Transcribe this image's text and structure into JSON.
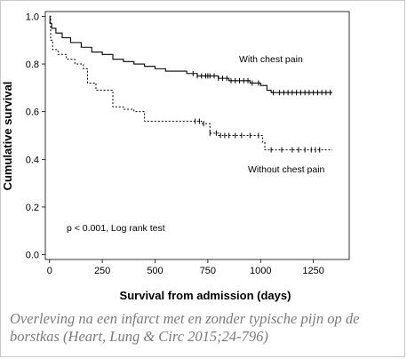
{
  "chart_data": {
    "type": "line",
    "title": "",
    "xlabel": "Survival from admission (days)",
    "ylabel": "Cumulative survival",
    "xlim": [
      -20,
      1420
    ],
    "ylim": [
      -0.02,
      1.02
    ],
    "xticks": [
      0,
      250,
      500,
      750,
      1000,
      1250
    ],
    "yticks": [
      0.0,
      0.2,
      0.4,
      0.6,
      0.8,
      1.0
    ],
    "xtick_labels": [
      "0",
      "250",
      "500",
      "750",
      "1000",
      "1250"
    ],
    "ytick_labels": [
      "0.0",
      "0.2",
      "0.4",
      "0.6",
      "0.8",
      "1.0"
    ],
    "grid": false,
    "legend": "none",
    "annotation": "p < 0.001, Log rank test",
    "series": [
      {
        "name": "With chest pain",
        "style": "solid",
        "color": "#000000",
        "points": [
          [
            0,
            1.0
          ],
          [
            2,
            0.97
          ],
          [
            10,
            0.95
          ],
          [
            30,
            0.93
          ],
          [
            60,
            0.91
          ],
          [
            100,
            0.89
          ],
          [
            150,
            0.87
          ],
          [
            200,
            0.85
          ],
          [
            250,
            0.84
          ],
          [
            300,
            0.82
          ],
          [
            350,
            0.81
          ],
          [
            400,
            0.8
          ],
          [
            450,
            0.79
          ],
          [
            500,
            0.78
          ],
          [
            550,
            0.77
          ],
          [
            600,
            0.77
          ],
          [
            650,
            0.76
          ],
          [
            700,
            0.75
          ],
          [
            750,
            0.75
          ],
          [
            800,
            0.74
          ],
          [
            850,
            0.73
          ],
          [
            900,
            0.73
          ],
          [
            950,
            0.72
          ],
          [
            1000,
            0.71
          ],
          [
            1030,
            0.69
          ],
          [
            1050,
            0.68
          ],
          [
            1150,
            0.68
          ],
          [
            1340,
            0.68
          ]
        ],
        "censor_marks": [
          680,
          700,
          720,
          740,
          750,
          760,
          780,
          800,
          820,
          840,
          860,
          880,
          900,
          920,
          940,
          960,
          990,
          1060,
          1090,
          1110,
          1130,
          1150,
          1170,
          1190,
          1210,
          1230,
          1250,
          1270,
          1290,
          1310,
          1330
        ]
      },
      {
        "name": "Without chest pain",
        "style": "dashed",
        "color": "#000000",
        "points": [
          [
            0,
            1.0
          ],
          [
            5,
            0.9
          ],
          [
            15,
            0.86
          ],
          [
            40,
            0.84
          ],
          [
            80,
            0.82
          ],
          [
            120,
            0.8
          ],
          [
            160,
            0.78
          ],
          [
            180,
            0.72
          ],
          [
            220,
            0.69
          ],
          [
            300,
            0.62
          ],
          [
            350,
            0.61
          ],
          [
            400,
            0.6
          ],
          [
            450,
            0.56
          ],
          [
            520,
            0.56
          ],
          [
            700,
            0.56
          ],
          [
            720,
            0.55
          ],
          [
            760,
            0.51
          ],
          [
            800,
            0.5
          ],
          [
            1000,
            0.5
          ],
          [
            1010,
            0.47
          ],
          [
            1020,
            0.44
          ],
          [
            1340,
            0.44
          ]
        ],
        "censor_marks": [
          690,
          710,
          730,
          760,
          790,
          810,
          830,
          850,
          880,
          910,
          950,
          990,
          1050,
          1100,
          1150,
          1180,
          1210,
          1240,
          1260,
          1280
        ]
      }
    ],
    "series_labels": [
      "With chest pain",
      "Without chest pain"
    ]
  },
  "caption": "Overleving na een infarct met en zonder typische pijn op de borstkas (Heart, Lung & Circ 2015;24-796)"
}
